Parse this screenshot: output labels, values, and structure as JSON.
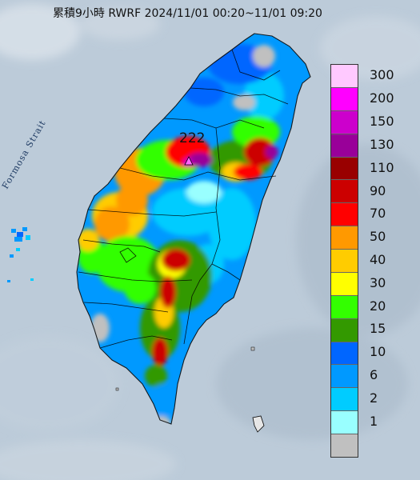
{
  "title": "累積9小時 RWRF 2024/11/01 00:20~11/01 09:20",
  "strait_label": "Formosa Strait",
  "max_value_label": "222",
  "legend": [
    {
      "label": "300",
      "color": "#ffc9ff"
    },
    {
      "label": "200",
      "color": "#ff00ff"
    },
    {
      "label": "150",
      "color": "#cc00cc"
    },
    {
      "label": "130",
      "color": "#990099"
    },
    {
      "label": "110",
      "color": "#990000"
    },
    {
      "label": "90",
      "color": "#cc0000"
    },
    {
      "label": "70",
      "color": "#ff0000"
    },
    {
      "label": "50",
      "color": "#ff9900"
    },
    {
      "label": "40",
      "color": "#ffcc00"
    },
    {
      "label": "30",
      "color": "#ffff00"
    },
    {
      "label": "20",
      "color": "#33ff00"
    },
    {
      "label": "15",
      "color": "#339900"
    },
    {
      "label": "10",
      "color": "#0066ff"
    },
    {
      "label": "6",
      "color": "#0099ff"
    },
    {
      "label": "2",
      "color": "#00ccff"
    },
    {
      "label": "1",
      "color": "#99ffff"
    },
    {
      "label": "",
      "color": "#c0c0c0"
    }
  ]
}
